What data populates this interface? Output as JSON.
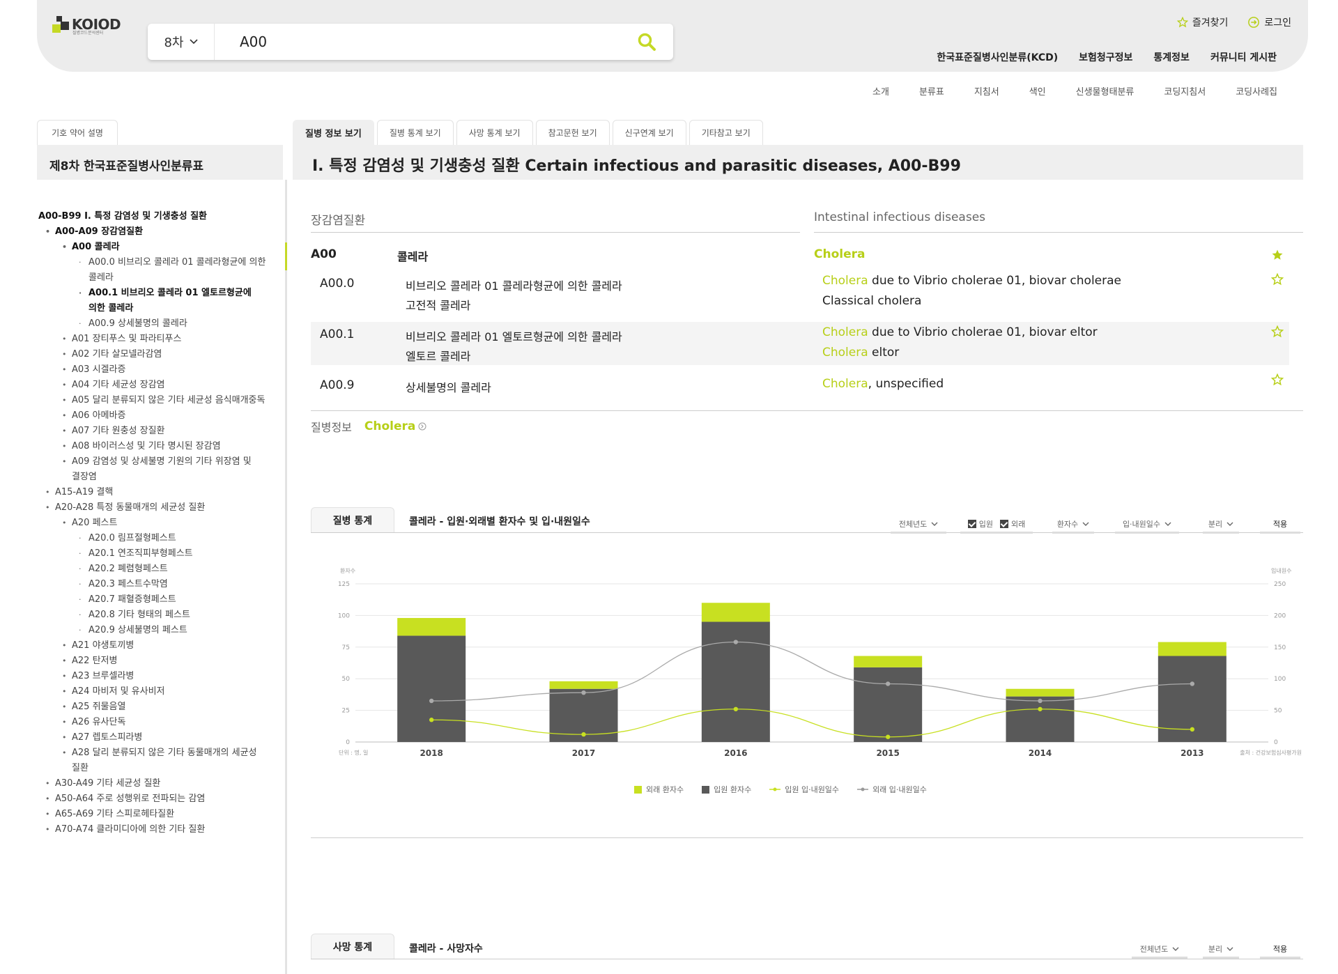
{
  "header": {
    "logo_text": "KOIOD",
    "logo_sub": "질병코드분석센터",
    "search": {
      "version": "8차",
      "value": "A00"
    },
    "top_links": {
      "favorites": "즐겨찾기",
      "login": "로그인"
    },
    "main_nav": [
      "한국표준질병사인분류(KCD)",
      "보험청구정보",
      "통계정보",
      "커뮤니티 게시판"
    ],
    "sub_nav": [
      "소개",
      "분류표",
      "지침서",
      "색인",
      "신생물형태분류",
      "코딩지침서",
      "코딩사례집"
    ]
  },
  "sidebar": {
    "abbr_button": "기호 약어 설명",
    "title": "제8차 한국표준질병사인분류표",
    "tree": [
      {
        "text": "A00-B99 I. 특정 감염성 및 기생충성 질환",
        "level": 0,
        "bold": true
      },
      {
        "text": "A00-A09 장감염질환",
        "level": 1,
        "bold": true
      },
      {
        "text": "A00 콜레라",
        "level": 2,
        "bold": true
      },
      {
        "text": "A00.0 비브리오 콜레라 01 콜레라형균에 의한 콜레라",
        "level": 3,
        "bold": false
      },
      {
        "text": "A00.1 비브리오 콜레라 01 엘토르형균에 의한 콜레라",
        "level": 3,
        "bold": true
      },
      {
        "text": "A00.9 상세불명의 콜레라",
        "level": 3,
        "bold": false
      },
      {
        "text": "A01 장티푸스 및 파라티푸스",
        "level": 2,
        "bold": false
      },
      {
        "text": "A02 기타 살모넬라감염",
        "level": 2,
        "bold": false
      },
      {
        "text": "A03 시겔라증",
        "level": 2,
        "bold": false
      },
      {
        "text": "A04 기타 세균성 장감염",
        "level": 2,
        "bold": false
      },
      {
        "text": "A05 달리 분류되지 않은 기타 세균성 음식매개중독",
        "level": 2,
        "bold": false
      },
      {
        "text": "A06 아메바증",
        "level": 2,
        "bold": false
      },
      {
        "text": "A07 기타 원충성 장질환",
        "level": 2,
        "bold": false
      },
      {
        "text": "A08 바이러스성 및 기타 명시된 장감염",
        "level": 2,
        "bold": false
      },
      {
        "text": "A09 감염성 및 상세불명 기원의 기타 위장염 및 결장염",
        "level": 2,
        "bold": false
      },
      {
        "text": "A15-A19 결핵",
        "level": 1,
        "bold": false
      },
      {
        "text": "A20-A28 특정 동물매개의 세균성 질환",
        "level": 1,
        "bold": false
      },
      {
        "text": "A20 페스트",
        "level": 2,
        "bold": false
      },
      {
        "text": "A20.0 림프절형페스트",
        "level": 3,
        "bold": false
      },
      {
        "text": "A20.1 연조직피부형페스트",
        "level": 3,
        "bold": false
      },
      {
        "text": "A20.2 폐렴형페스트",
        "level": 3,
        "bold": false
      },
      {
        "text": "A20.3 페스트수막염",
        "level": 3,
        "bold": false
      },
      {
        "text": "A20.7 패혈증형페스트",
        "level": 3,
        "bold": false
      },
      {
        "text": "A20.8 기타 형태의 페스트",
        "level": 3,
        "bold": false
      },
      {
        "text": "A20.9 상세불명의 페스트",
        "level": 3,
        "bold": false
      },
      {
        "text": "A21 야생토끼병",
        "level": 2,
        "bold": false
      },
      {
        "text": "A22 탄저병",
        "level": 2,
        "bold": false
      },
      {
        "text": "A23 브루셀라병",
        "level": 2,
        "bold": false
      },
      {
        "text": "A24 마비저 및 유사비저",
        "level": 2,
        "bold": false
      },
      {
        "text": "A25 쥐물음열",
        "level": 2,
        "bold": false
      },
      {
        "text": "A26 유사단독",
        "level": 2,
        "bold": false
      },
      {
        "text": "A27 렙토스피라병",
        "level": 2,
        "bold": false
      },
      {
        "text": "A28 달리 분류되지 않은 기타 동물매개의 세균성 질환",
        "level": 2,
        "bold": false
      },
      {
        "text": "A30-A49 기타 세균성 질환",
        "level": 1,
        "bold": false
      },
      {
        "text": "A50-A64 주로 성행위로 전파되는 감염",
        "level": 1,
        "bold": false
      },
      {
        "text": "A65-A69 기타 스피로헤타질환",
        "level": 1,
        "bold": false
      },
      {
        "text": "A70-A74 클라미디아에 의한 기타 질환",
        "level": 1,
        "bold": false
      }
    ]
  },
  "tabs": [
    "질병 정보 보기",
    "질병 통계 보기",
    "사망 통계 보기",
    "참고문헌 보기",
    "신구연계 보기",
    "기타참고 보기"
  ],
  "content": {
    "title": "I. 특정 감염성 및 기생충성 질환 Certain infectious and parasitic diseases, A00-B99",
    "section_ko": "장감염질환",
    "section_en": "Intestinal infectious diseases",
    "main": {
      "code": "A00",
      "ko": "콜레라",
      "en": "Cholera"
    },
    "rows": [
      {
        "code": "A00.0",
        "ko1": "비브리오 콜레라 01 콜레라형균에 의한 콜레라",
        "ko2": "고전적 콜레라",
        "en1_hl": "Cholera",
        "en1": " due to Vibrio cholerae 01, biovar cholerae",
        "en2_hl": "",
        "en2": "Classical cholera"
      },
      {
        "code": "A00.1",
        "ko1": "비브리오 콜레라 01 엘토르형균에 의한 콜레라",
        "ko2": "엘토르 콜레라",
        "en1_hl": "Cholera",
        "en1": " due to Vibrio cholerae 01, biovar eltor",
        "en2_hl": "Cholera",
        "en2": " eltor"
      },
      {
        "code": "A00.9",
        "ko1": "상세불명의 콜레라",
        "ko2": "",
        "en1_hl": "Cholera",
        "en1": ", unspecified",
        "en2_hl": "",
        "en2": ""
      }
    ],
    "disease_info_label": "질병정보",
    "disease_info_link": "Cholera",
    "disease_info_icon": "circle-arrow-icon"
  },
  "disease_stats": {
    "tab": "질병 통계",
    "title": "콜레라 - 입원·외래별 환자수 및 입·내원일수",
    "filters": {
      "year": "전체년도",
      "inpatient": "입원",
      "outpatient": "외래",
      "metric": "환자수",
      "days": "입·내원일수",
      "split": "분리",
      "apply": "적용"
    }
  },
  "chart_data": {
    "type": "bar",
    "stacked": true,
    "categories": [
      "2018",
      "2017",
      "2016",
      "2015",
      "2014",
      "2013"
    ],
    "series": [
      {
        "name": "외래 환자수",
        "kind": "bar",
        "axis": "left",
        "color": "#c8e021",
        "values": [
          14,
          6,
          15,
          9,
          6,
          11
        ]
      },
      {
        "name": "입원 환자수",
        "kind": "bar",
        "axis": "left",
        "color": "#595959",
        "values": [
          84,
          42,
          95,
          59,
          36,
          68
        ]
      },
      {
        "name": "입원 입·내원일수",
        "kind": "line",
        "axis": "right",
        "color": "#c8e021",
        "values": [
          35,
          12,
          52,
          8,
          52,
          20
        ]
      },
      {
        "name": "외래 입·내원일수",
        "kind": "line",
        "axis": "right",
        "color": "#aaaaaa",
        "values": [
          65,
          78,
          158,
          92,
          65,
          92
        ]
      }
    ],
    "left_axis": {
      "label": "환자수",
      "ticks": [
        "0",
        "25",
        "50",
        "75",
        "100",
        "125"
      ],
      "range": [
        0,
        125
      ]
    },
    "right_axis": {
      "label": "입내원수",
      "ticks": [
        "0",
        "50",
        "100",
        "150",
        "200",
        "250"
      ],
      "range": [
        0,
        250
      ]
    },
    "unit_note": "단위 : 명, 일",
    "source_note": "출처 : 건강보험심사평가원",
    "grid": true,
    "legend_position": "bottom"
  },
  "death_stats": {
    "tab": "사망 통계",
    "title": "콜레라 - 사망자수",
    "filters": {
      "year": "전체년도",
      "split": "분리",
      "apply": "적용"
    }
  }
}
